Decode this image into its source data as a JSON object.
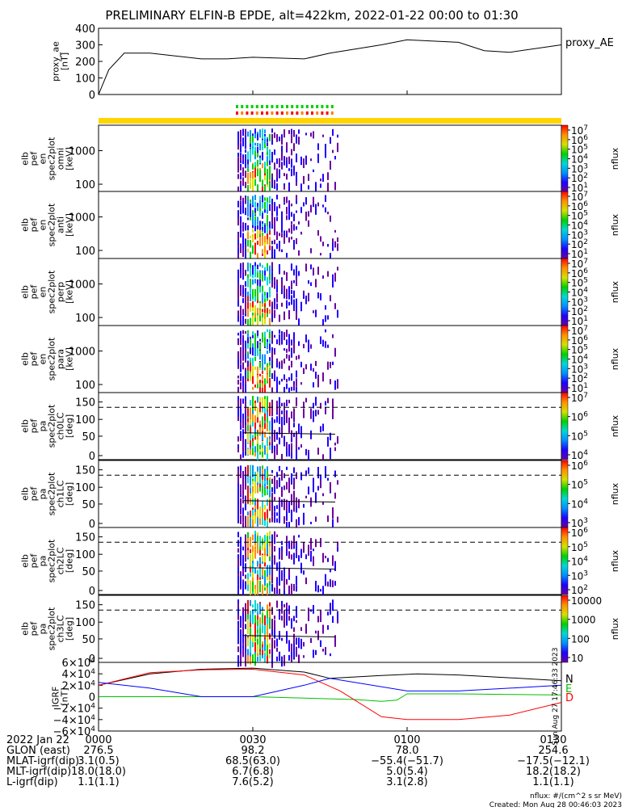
{
  "title": "PRELIMINARY ELFIN-B EPDE, alt=422km, 2022-01-22 00:00 to 01:30",
  "chart_data": [
    {
      "type": "line",
      "name": "proxy_ae",
      "ylabel": [
        "proxy_ae",
        "[nT]"
      ],
      "legend": "proxy_AE",
      "yticks": [
        "400",
        "300",
        "200",
        "100",
        "0"
      ],
      "ylim": [
        0,
        400
      ],
      "x_minutes": [
        0,
        2,
        5,
        10,
        20,
        25,
        30,
        40,
        45,
        55,
        60,
        70,
        75,
        80,
        90
      ],
      "values": [
        0,
        150,
        250,
        250,
        215,
        215,
        225,
        215,
        250,
        300,
        330,
        315,
        265,
        255,
        300
      ]
    },
    {
      "type": "heatmap",
      "panels": [
        {
          "ylabel": [
            "elb",
            "pef",
            "en",
            "spec2plot",
            "omni",
            "[keV]"
          ],
          "yticks": [
            "1000",
            "100"
          ],
          "cbticks": [
            "10^7",
            "10^6",
            "10^5",
            "10^4",
            "10^3",
            "10^2",
            "10^1"
          ],
          "cblabel": "nflux"
        },
        {
          "ylabel": [
            "elb",
            "pef",
            "en",
            "spec2plot",
            "anti",
            "[keV]"
          ],
          "yticks": [
            "1000",
            "100"
          ],
          "cbticks": [
            "10^7",
            "10^6",
            "10^5",
            "10^4",
            "10^3",
            "10^2",
            "10^1"
          ],
          "cblabel": "nflux"
        },
        {
          "ylabel": [
            "elb",
            "pef",
            "en",
            "spec2plot",
            "perp",
            "[keV]"
          ],
          "yticks": [
            "1000",
            "100"
          ],
          "cbticks": [
            "10^7",
            "10^6",
            "10^5",
            "10^4",
            "10^3",
            "10^2",
            "10^1"
          ],
          "cblabel": "nflux"
        },
        {
          "ylabel": [
            "elb",
            "pef",
            "en",
            "spec2plot",
            "para",
            "[keV]"
          ],
          "yticks": [
            "1000",
            "100"
          ],
          "cbticks": [
            "10^7",
            "10^6",
            "10^5",
            "10^4",
            "10^3",
            "10^2",
            "10^1"
          ],
          "cblabel": "nflux"
        },
        {
          "ylabel": [
            "elb",
            "pef",
            "pa",
            "spec2plot",
            "ch0LC",
            "[deg]"
          ],
          "yticks": [
            "150",
            "100",
            "50",
            "0"
          ],
          "cbticks": [
            "10^7",
            "10^6",
            "10^5",
            "10^4"
          ],
          "cblabel": "nflux"
        },
        {
          "ylabel": [
            "elb",
            "pef",
            "pa",
            "spec2plot",
            "ch1LC",
            "[deg]"
          ],
          "yticks": [
            "150",
            "100",
            "50",
            "0"
          ],
          "cbticks": [
            "10^6",
            "10^5",
            "10^4",
            "10^3"
          ],
          "cblabel": "nflux"
        },
        {
          "ylabel": [
            "elb",
            "pef",
            "pa",
            "spec2plot",
            "ch2LC",
            "[deg]"
          ],
          "yticks": [
            "150",
            "100",
            "50",
            "0"
          ],
          "cbticks": [
            "10^6",
            "10^5",
            "10^4",
            "10^3",
            "10^2"
          ],
          "cblabel": "nflux"
        },
        {
          "ylabel": [
            "elb",
            "pef",
            "pa",
            "spec2plot",
            "ch3LC",
            "[deg]"
          ],
          "yticks": [
            "150",
            "100",
            "50",
            "0"
          ],
          "cbticks": [
            "10000",
            "1000",
            "100",
            "10"
          ],
          "cblabel": "nflux"
        }
      ]
    },
    {
      "type": "line",
      "name": "IGRF",
      "ylabel": [
        "IGRF",
        "[nT]"
      ],
      "yticks": [
        "6×10^4",
        "4×10^4",
        "2×10^4",
        "0",
        "−2×10^4",
        "−4×10^4",
        "−6×10^4"
      ],
      "ylim": [
        -60000,
        60000
      ],
      "series": [
        {
          "name": "N",
          "color": "#000000",
          "x_minutes": [
            0,
            10,
            20,
            30,
            40,
            45,
            55,
            62,
            70,
            80,
            90
          ],
          "values": [
            20000,
            40000,
            48000,
            50000,
            43000,
            32000,
            37000,
            40000,
            38000,
            33000,
            28000
          ]
        },
        {
          "name": "E",
          "color": "#00c000",
          "x_minutes": [
            0,
            30,
            50,
            55,
            58,
            60,
            70,
            80,
            90
          ],
          "values": [
            0,
            0,
            -5000,
            -8000,
            -6000,
            5000,
            5000,
            4000,
            3000
          ]
        },
        {
          "name": "D",
          "color": "#ff0000",
          "x_minutes": [
            0,
            10,
            20,
            30,
            40,
            47,
            55,
            60,
            70,
            80,
            90
          ],
          "values": [
            20000,
            42000,
            47000,
            48000,
            38000,
            10000,
            -35000,
            -40000,
            -40000,
            -32000,
            -10000
          ]
        },
        {
          "name": "",
          "color": "#0000ff",
          "x_minutes": [
            0,
            10,
            20,
            30,
            40,
            45,
            60,
            70,
            80,
            90
          ],
          "values": [
            25000,
            15000,
            0,
            0,
            20000,
            32000,
            10000,
            10000,
            15000,
            20000
          ]
        }
      ]
    }
  ],
  "stamp": "Sun Aug 27 17:46:33 2023",
  "footer": {
    "rows": [
      {
        "label": "2022 Jan 22",
        "values": [
          "0000",
          "0030",
          "0100",
          "0130"
        ]
      },
      {
        "label": "GLON (east)",
        "values": [
          "276.5",
          "98.2",
          "78.0",
          "254.6"
        ]
      },
      {
        "label": "MLAT-igrf(dip)",
        "values": [
          "3.1(0.5)",
          "68.5(63.0)",
          "−55.4(−51.7)",
          "−17.5(−12.1)"
        ]
      },
      {
        "label": "MLT-igrf(dip)",
        "values": [
          "18.0(18.0)",
          "6.7(6.8)",
          "5.0(5.4)",
          "18.2(18.2)"
        ]
      },
      {
        "label": "L-igrf(dip)",
        "values": [
          "1.1(1.1)",
          "7.6(5.2)",
          "3.1(2.8)",
          "1.1(1.1)"
        ]
      }
    ],
    "units_note": "nflux: #/(cm^2 s sr MeV)",
    "created": "Created: Mon Aug 28 00:46:03 2023"
  }
}
